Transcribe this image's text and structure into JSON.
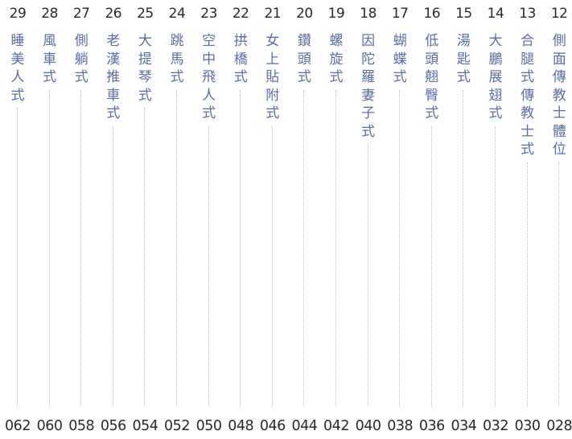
{
  "entries": [
    {
      "num": "29",
      "title": "睡美人式",
      "page": "062"
    },
    {
      "num": "28",
      "title": "風車式",
      "page": "060"
    },
    {
      "num": "27",
      "title": "側躺式",
      "page": "058"
    },
    {
      "num": "26",
      "title": "老漢推車式",
      "page": "056"
    },
    {
      "num": "25",
      "title": "大提琴式",
      "page": "054"
    },
    {
      "num": "24",
      "title": "跳馬式",
      "page": "052"
    },
    {
      "num": "23",
      "title": "空中飛人式",
      "page": "050"
    },
    {
      "num": "22",
      "title": "拱橋式",
      "page": "048"
    },
    {
      "num": "21",
      "title": "女上貼附式",
      "page": "046"
    },
    {
      "num": "20",
      "title": "鑽頭式",
      "page": "044"
    },
    {
      "num": "19",
      "title": "螺旋式",
      "page": "042"
    },
    {
      "num": "18",
      "title": "因陀羅妻子式",
      "page": "040"
    },
    {
      "num": "17",
      "title": "蝴蝶式",
      "page": "038"
    },
    {
      "num": "16",
      "title": "低頭翹臀式",
      "page": "036"
    },
    {
      "num": "15",
      "title": "湯匙式",
      "page": "034"
    },
    {
      "num": "14",
      "title": "大鵬展翅式",
      "page": "032"
    },
    {
      "num": "13",
      "title": "合腿式傳教士式",
      "page": "030"
    },
    {
      "num": "12",
      "title": "側面傳教士體位",
      "page": "028"
    }
  ]
}
